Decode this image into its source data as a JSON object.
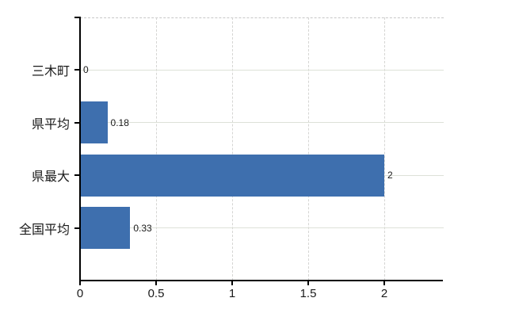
{
  "chart_data": {
    "type": "bar",
    "orientation": "horizontal",
    "title": "",
    "xlabel": "",
    "ylabel": "",
    "categories": [
      "三木町",
      "県平均",
      "県最大",
      "全国平均"
    ],
    "values": [
      0,
      0.18,
      2,
      0.33
    ],
    "value_labels": [
      "0",
      "0.18",
      "2",
      "0.33"
    ],
    "x_ticks": [
      0,
      0.5,
      1,
      1.5,
      2
    ],
    "x_tick_labels": [
      "0",
      "0.5",
      "1",
      "1.5",
      "2"
    ],
    "xlim": [
      0,
      2.39
    ],
    "grid": true,
    "legend_position": "none",
    "colors": {
      "bar": "#3e6fae",
      "axis": "#000000",
      "horizontal_gridline": "#dde1d8",
      "vertical_gridline": "#d5d5d3",
      "top_border": "#c8c8c8",
      "text": "#1a1a1a",
      "background": "#ffffff"
    }
  }
}
